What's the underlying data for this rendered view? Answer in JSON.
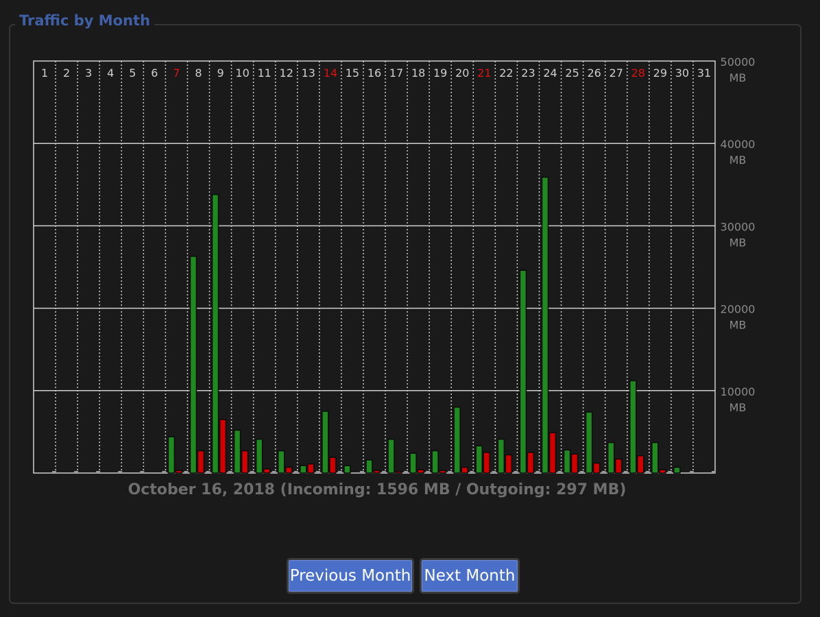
{
  "panel": {
    "title": "Traffic by Month"
  },
  "caption": "October 16, 2018 (Incoming: 1596 MB / Outgoing: 297 MB)",
  "buttons": {
    "prev": "Previous Month",
    "next": "Next Month"
  },
  "colors": {
    "incoming": "#1f8a1f",
    "outgoing": "#d10000",
    "weekend_label": "#e01010",
    "day_label": "#cfcfcf",
    "grid": "#cfcfcf",
    "axis_label": "#8a8a8a",
    "title": "#3f5fa6",
    "button": "#4a6fc9"
  },
  "chart_data": {
    "type": "bar",
    "categories": [
      "1",
      "2",
      "3",
      "4",
      "5",
      "6",
      "7",
      "8",
      "9",
      "10",
      "11",
      "12",
      "13",
      "14",
      "15",
      "16",
      "17",
      "18",
      "19",
      "20",
      "21",
      "22",
      "23",
      "24",
      "25",
      "26",
      "27",
      "28",
      "29",
      "30",
      "31"
    ],
    "highlighted_days": [
      "7",
      "14",
      "21",
      "28"
    ],
    "ylim": [
      0,
      50000
    ],
    "ytick_values": [
      10000,
      20000,
      30000,
      40000,
      50000
    ],
    "yunit": "MB",
    "grid": true,
    "series": [
      {
        "name": "Incoming",
        "values": [
          0,
          0,
          0,
          0,
          0,
          0,
          4400,
          26300,
          33800,
          5200,
          4100,
          2700,
          900,
          7500,
          900,
          1596,
          4100,
          2400,
          2700,
          8000,
          3300,
          4100,
          24600,
          35900,
          2800,
          7400,
          3700,
          11200,
          3700,
          700,
          0
        ]
      },
      {
        "name": "Outgoing",
        "values": [
          0,
          0,
          0,
          0,
          0,
          0,
          300,
          2700,
          6500,
          2700,
          500,
          700,
          1100,
          1900,
          0,
          297,
          200,
          400,
          300,
          700,
          2500,
          2200,
          2500,
          4900,
          2300,
          1200,
          1700,
          2100,
          400,
          0,
          0
        ]
      }
    ]
  }
}
